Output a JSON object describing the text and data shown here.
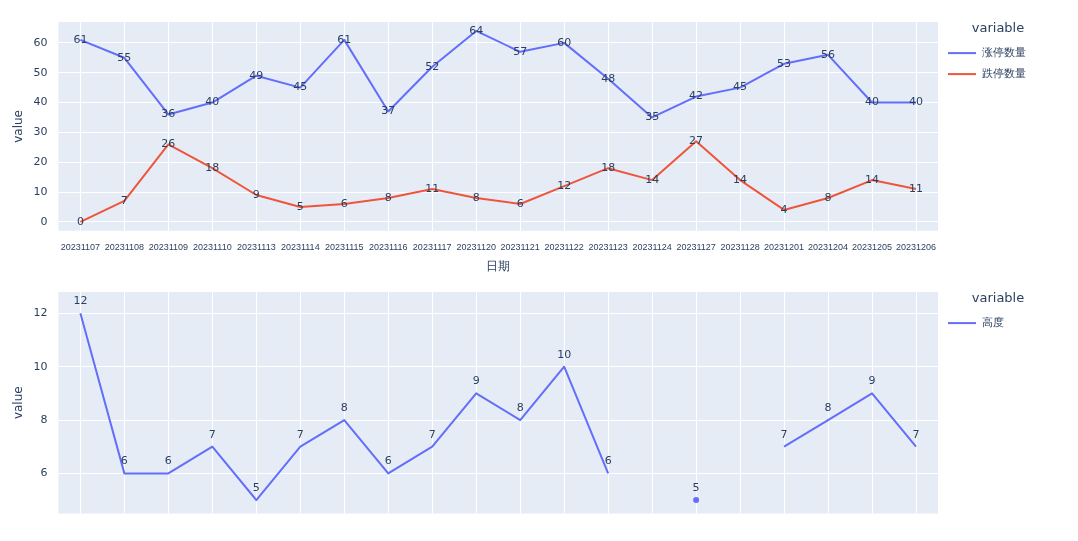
{
  "chart_data": [
    {
      "type": "line",
      "xlabel": "日期",
      "ylabel": "value",
      "legend_title": "variable",
      "legend": "top right",
      "grid": true,
      "data_labels": true,
      "marker": "none",
      "categories": [
        "20231107",
        "20231108",
        "20231109",
        "20231110",
        "20231113",
        "20231114",
        "20231115",
        "20231116",
        "20231117",
        "20231120",
        "20231121",
        "20231122",
        "20231123",
        "20231124",
        "20231127",
        "20231128",
        "20231201",
        "20231204",
        "20231205",
        "20231206"
      ],
      "ylim": [
        -3,
        67
      ],
      "yticks": [
        0,
        10,
        20,
        30,
        40,
        50,
        60
      ],
      "series": [
        {
          "name": "涨停数量",
          "color": "#636efa",
          "values": [
            61,
            55,
            36,
            40,
            49,
            45,
            61,
            37,
            52,
            64,
            57,
            60,
            48,
            35,
            42,
            45,
            53,
            56,
            40,
            40
          ]
        },
        {
          "name": "跌停数量",
          "color": "#ef553b",
          "values": [
            0,
            7,
            26,
            18,
            9,
            5,
            6,
            8,
            11,
            8,
            6,
            12,
            18,
            14,
            27,
            14,
            4,
            8,
            14,
            11
          ]
        }
      ]
    },
    {
      "type": "line",
      "ylabel": "value",
      "legend_title": "variable",
      "legend": "top right",
      "grid": true,
      "data_labels": true,
      "marker": "none",
      "tick_labels": "y",
      "categories": [
        null,
        null,
        null,
        null,
        null,
        null,
        null,
        null,
        null,
        null,
        null,
        null,
        null,
        null,
        null,
        null,
        null,
        null,
        null,
        null
      ],
      "ylim": [
        4.5,
        12.8
      ],
      "yticks": [
        6,
        8,
        10,
        12
      ],
      "series": [
        {
          "name": "高度",
          "color": "#636efa",
          "values": [
            12,
            6,
            6,
            7,
            5,
            7,
            8,
            6,
            7,
            9,
            8,
            10,
            6,
            null,
            5,
            null,
            7,
            8,
            9,
            7
          ]
        }
      ]
    }
  ]
}
